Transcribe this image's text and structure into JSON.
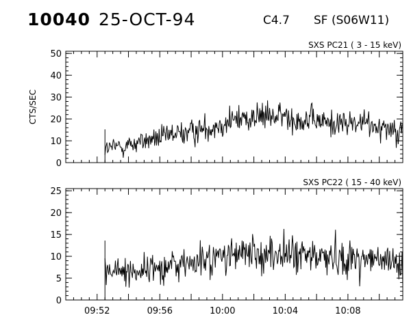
{
  "header": {
    "event_id": "10040",
    "date": "25-OCT-94",
    "goes_class": "C4.7",
    "flare": "SF (S06W11)"
  },
  "colors": {
    "trace": "#000000",
    "axes": "#000000",
    "background": "#ffffff"
  },
  "chart_data": [
    {
      "type": "line",
      "title": "SXS PC21  (  3 - 15 keV)",
      "xlabel": "",
      "ylabel": "CTS/SEC",
      "ylim": [
        0,
        51
      ],
      "yticks": [
        0,
        10,
        20,
        30,
        40,
        50
      ],
      "xlim": [
        "09:50:00",
        "10:11:30"
      ],
      "xticks": [],
      "grid": false,
      "series": [
        {
          "x": [
            "09:52:30",
            "09:53:00",
            "09:54:00",
            "09:55:00",
            "09:56:00",
            "09:57:00",
            "09:58:00",
            "09:59:00",
            "10:00:00",
            "10:01:00",
            "10:02:00",
            "10:03:00",
            "10:04:00",
            "10:05:00",
            "10:06:00",
            "10:07:00",
            "10:08:00",
            "10:09:00",
            "10:10:00",
            "10:11:30"
          ],
          "values": [
            6,
            7,
            8,
            10,
            11,
            13,
            14,
            16,
            18,
            20,
            21,
            21,
            21,
            20,
            19,
            18,
            18,
            18,
            17,
            15
          ]
        }
      ]
    },
    {
      "type": "line",
      "title": "SXS PC22  ( 15 - 40 keV)",
      "xlabel": "",
      "ylabel": "",
      "ylim": [
        0,
        25.5
      ],
      "yticks": [
        0,
        5,
        10,
        15,
        20,
        25
      ],
      "xlim": [
        "09:50:00",
        "10:11:30"
      ],
      "xticks": [
        "09:52",
        "09:56",
        "10:00",
        "10:04",
        "10:08"
      ],
      "grid": false,
      "series": [
        {
          "x": [
            "09:52:30",
            "09:53:00",
            "09:54:00",
            "09:55:00",
            "09:56:00",
            "09:57:00",
            "09:58:00",
            "09:59:00",
            "10:00:00",
            "10:01:00",
            "10:02:00",
            "10:03:00",
            "10:04:00",
            "10:05:00",
            "10:06:00",
            "10:07:00",
            "10:08:00",
            "10:09:00",
            "10:10:00",
            "10:11:30"
          ],
          "values": [
            7,
            6.5,
            6.5,
            7,
            7.5,
            8,
            8.5,
            9,
            10,
            10.5,
            10.5,
            10.5,
            10.5,
            10,
            10,
            10,
            9.5,
            9.5,
            9,
            8
          ]
        }
      ]
    }
  ]
}
